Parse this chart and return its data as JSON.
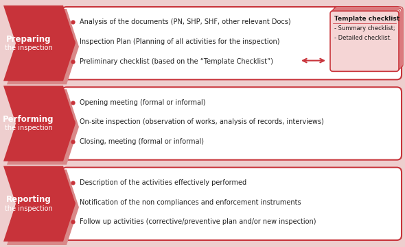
{
  "background_color": "#eecece",
  "arrow_color": "#c8333a",
  "arrow_shadow_color": "#d98888",
  "box_bg_color": "#ffffff",
  "box_border_color": "#c8333a",
  "label_text_color": "#ffffff",
  "bullet_color": "#c8333a",
  "rows": [
    {
      "label_line1": "Preparing",
      "label_line2": "the inspection",
      "bullets": [
        "Analysis of the documents (PN, SHP, SHF, other relevant Docs)",
        "Inspection Plan (Planning of all activities for the inspection)",
        "Preliminary checklist (based on the “Template Checklist”)"
      ],
      "has_checklist": true
    },
    {
      "label_line1": "Performing",
      "label_line2": "the inspection",
      "bullets": [
        "Opening meeting (formal or informal)",
        "On-site inspection (observation of works, analysis of records, interviews)",
        "Closing, meeting (formal or informal)"
      ],
      "has_checklist": false
    },
    {
      "label_line1": "Reporting",
      "label_line2": "the inspection",
      "bullets": [
        "Description of the activities effectively performed",
        "Notification of the non compliances and enforcement instruments",
        "Follow up activities (corrective/preventive plan and/or new inspection)"
      ],
      "has_checklist": false
    }
  ],
  "checklist_title": "Template checklist",
  "checklist_items": [
    "- Summary checklist;",
    "- Detailed checklist."
  ],
  "checklist_bg": "#f5d5d5",
  "checklist_border": "#c8333a"
}
